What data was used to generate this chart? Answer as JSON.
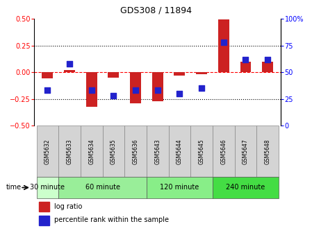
{
  "title": "GDS308 / 11894",
  "samples": [
    "GSM5632",
    "GSM5633",
    "GSM5634",
    "GSM5635",
    "GSM5636",
    "GSM5643",
    "GSM5644",
    "GSM5645",
    "GSM5646",
    "GSM5647",
    "GSM5648"
  ],
  "log_ratio": [
    -0.06,
    0.02,
    -0.32,
    -0.05,
    -0.29,
    -0.27,
    -0.03,
    -0.02,
    0.49,
    0.1,
    0.1
  ],
  "percentile_rank": [
    33,
    58,
    33,
    28,
    33,
    33,
    30,
    35,
    78,
    62,
    62
  ],
  "ylim_left": [
    -0.5,
    0.5
  ],
  "ylim_right": [
    0,
    100
  ],
  "yticks_left": [
    -0.5,
    -0.25,
    0,
    0.25,
    0.5
  ],
  "yticks_right": [
    0,
    25,
    50,
    75,
    100
  ],
  "groups": [
    {
      "label": "30 minute",
      "indices": [
        0
      ],
      "color": "#ccffcc"
    },
    {
      "label": "60 minute",
      "indices": [
        1,
        2,
        3,
        4
      ],
      "color": "#99ee99"
    },
    {
      "label": "120 minute",
      "indices": [
        5,
        6,
        7
      ],
      "color": "#88ee88"
    },
    {
      "label": "240 minute",
      "indices": [
        8,
        9,
        10
      ],
      "color": "#44dd44"
    }
  ],
  "bar_color": "#cc2222",
  "dot_color": "#2222cc",
  "bar_width": 0.5,
  "dot_size": 35,
  "sample_box_color": "#d4d4d4",
  "legend_bar_label": "log ratio",
  "legend_dot_label": "percentile rank within the sample",
  "time_label": "time"
}
